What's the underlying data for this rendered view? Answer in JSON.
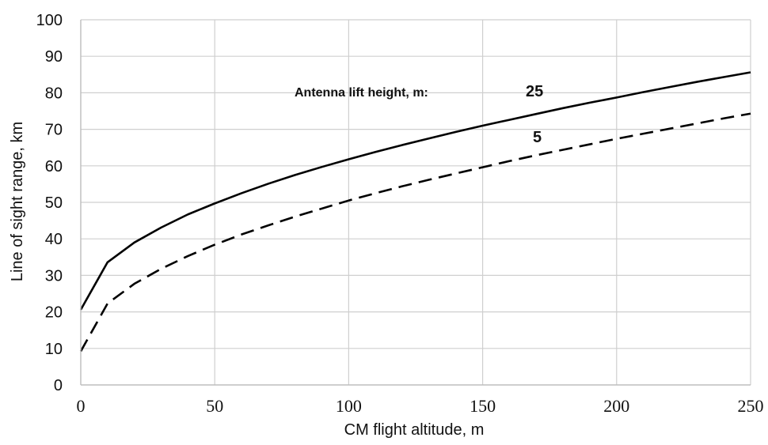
{
  "chart_data": {
    "type": "line",
    "xlabel": "CM flight altitude, m",
    "ylabel": "Line of sight range, km",
    "xlim": [
      0,
      250
    ],
    "ylim": [
      0,
      100
    ],
    "x_ticks": [
      0,
      50,
      100,
      150,
      200,
      250
    ],
    "y_ticks": [
      0,
      10,
      20,
      30,
      40,
      50,
      60,
      70,
      80,
      90,
      100
    ],
    "grid": true,
    "legend_title": "Antenna lift height, m:",
    "x": [
      0,
      10,
      20,
      30,
      40,
      50,
      60,
      70,
      80,
      90,
      100,
      110,
      120,
      130,
      140,
      150,
      160,
      170,
      180,
      190,
      200,
      210,
      220,
      230,
      240,
      250
    ],
    "series": [
      {
        "name": "25",
        "color": "#000000",
        "dash": "solid",
        "values": [
          20.6,
          33.6,
          39.0,
          43.1,
          46.7,
          49.7,
          52.5,
          55.1,
          57.5,
          59.7,
          61.8,
          63.8,
          65.7,
          67.5,
          69.3,
          71.0,
          72.6,
          74.2,
          75.8,
          77.3,
          78.7,
          80.2,
          81.6,
          83.0,
          84.3,
          85.6
        ]
      },
      {
        "name": "5",
        "color": "#000000",
        "dash": "dashed",
        "values": [
          9.2,
          22.3,
          27.7,
          31.8,
          35.3,
          38.4,
          41.2,
          43.7,
          46.1,
          48.3,
          50.5,
          52.5,
          54.4,
          56.2,
          57.9,
          59.6,
          61.3,
          62.9,
          64.4,
          65.9,
          67.4,
          68.8,
          70.2,
          71.6,
          73.0,
          74.3
        ]
      }
    ]
  }
}
